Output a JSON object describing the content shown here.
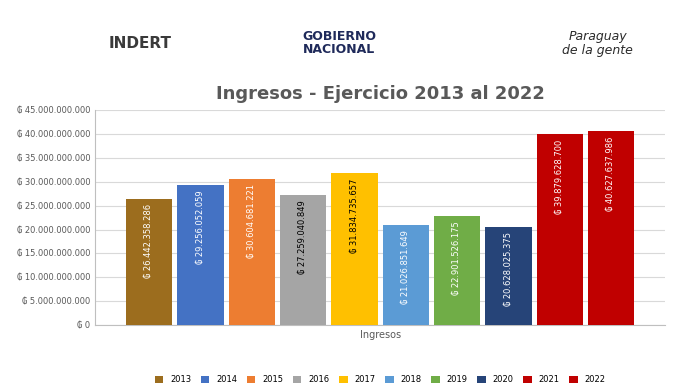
{
  "header": {
    "logos": [
      "INDERT",
      "GOBIERNO\nNACIONAL",
      "Paraguay\nde la gente"
    ]
  },
  "chart_data": {
    "type": "bar",
    "title": "Ingresos - Ejercicio 2013 al 2022",
    "categories": [
      "Ingresos"
    ],
    "series": [
      {
        "name": "2013",
        "color": "#9C6D1E",
        "values": [
          26442358286
        ],
        "value_labels": [
          "₲ 26.442.358.286"
        ]
      },
      {
        "name": "2014",
        "color": "#4472C4",
        "values": [
          29256052059
        ],
        "value_labels": [
          "₲ 29.256.052.059"
        ]
      },
      {
        "name": "2015",
        "color": "#ED7D31",
        "values": [
          30604681221
        ],
        "value_labels": [
          "₲ 30.604.681.221"
        ]
      },
      {
        "name": "2016",
        "color": "#A5A5A5",
        "values": [
          27259040849
        ],
        "value_labels": [
          "₲ 27.259.040.849"
        ]
      },
      {
        "name": "2017",
        "color": "#FFC000",
        "values": [
          31834735657
        ],
        "value_labels": [
          "₲ 31.834.735.657"
        ]
      },
      {
        "name": "2018",
        "color": "#5B9BD5",
        "values": [
          21026851649
        ],
        "value_labels": [
          "₲ 21.026.851.649"
        ]
      },
      {
        "name": "2019",
        "color": "#70AD47",
        "values": [
          22901526175
        ],
        "value_labels": [
          "₲ 22.901.526.175"
        ]
      },
      {
        "name": "2020",
        "color": "#264478",
        "values": [
          20628025375
        ],
        "value_labels": [
          "₲ 20.628.025.375"
        ]
      },
      {
        "name": "2021",
        "color": "#C00000",
        "values": [
          39879628700
        ],
        "value_labels": [
          "₲ 39.879.628.700"
        ]
      },
      {
        "name": "2022",
        "color": "#C00000",
        "values": [
          40627637986
        ],
        "value_labels": [
          "₲ 40.627.637.986"
        ]
      }
    ],
    "ylim": [
      0,
      45000000000
    ],
    "yticks": [
      {
        "value": 0,
        "label": "₲ 0"
      },
      {
        "value": 5000000000,
        "label": "₲ 5.000.000.000"
      },
      {
        "value": 10000000000,
        "label": "₲ 10.000.000.000"
      },
      {
        "value": 15000000000,
        "label": "₲ 15.000.000.000"
      },
      {
        "value": 20000000000,
        "label": "₲ 20.000.000.000"
      },
      {
        "value": 25000000000,
        "label": "₲ 25.000.000.000"
      },
      {
        "value": 30000000000,
        "label": "₲ 30.000.000.000"
      },
      {
        "value": 35000000000,
        "label": "₲ 35.000.000.000"
      },
      {
        "value": 40000000000,
        "label": "₲ 40.000.000.000"
      },
      {
        "value": 45000000000,
        "label": "₲ 45.000.000.000"
      }
    ],
    "grid": true,
    "legend": "lower center",
    "data_labels": true
  }
}
